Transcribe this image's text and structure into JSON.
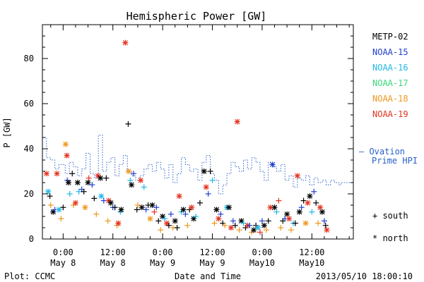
{
  "chart_data": {
    "type": "scatter",
    "title": "Hemispheric Power [GW]",
    "xlabel": "Date and Time",
    "ylabel": "P [GW]",
    "ylim": [
      0,
      95
    ],
    "xlim": [
      -5,
      70
    ],
    "x_unit": "hours since 2013-05-08 00:00 UT",
    "yticks": [
      0,
      20,
      40,
      60,
      80
    ],
    "xticks": [
      {
        "t": 0,
        "line1": "0:00",
        "line2": "May 8"
      },
      {
        "t": 12,
        "line1": "12:00",
        "line2": "May 8"
      },
      {
        "t": 24,
        "line1": "0:00",
        "line2": "May 9"
      },
      {
        "t": 36,
        "line1": "12:00",
        "line2": "May 9"
      },
      {
        "t": 48,
        "line1": "0:00",
        "line2": "May10"
      },
      {
        "t": 60,
        "line1": "12:00",
        "line2": "May10"
      }
    ],
    "footer_left": "Plot: CCMC",
    "footer_right": "2013/05/10 18:00:10",
    "legend": [
      {
        "name": "METP-02",
        "color": "#000000"
      },
      {
        "name": "NOAA-15",
        "color": "#1f3fcf"
      },
      {
        "name": "NOAA-16",
        "color": "#22b8e6"
      },
      {
        "name": "NOAA-17",
        "color": "#3ad87a"
      },
      {
        "name": "NOAA-18",
        "color": "#f0961e"
      },
      {
        "name": "NOAA-19",
        "color": "#e4321e"
      }
    ],
    "ovation_label": [
      "— Ovation",
      "Prime HPI"
    ],
    "ovation_color": "#2a5fc8",
    "marker_legend": [
      {
        "symbol": "+",
        "text": "south"
      },
      {
        "symbol": "*",
        "text": "north"
      }
    ],
    "ovation": [
      {
        "t": -5.0,
        "p": 45
      },
      {
        "t": -4.0,
        "p": 36
      },
      {
        "t": -3.0,
        "p": 35
      },
      {
        "t": -2.0,
        "p": 31
      },
      {
        "t": -1.0,
        "p": 33
      },
      {
        "t": 0.5,
        "p": 29
      },
      {
        "t": 1.5,
        "p": 34
      },
      {
        "t": 2.5,
        "p": 32
      },
      {
        "t": 3.5,
        "p": 28
      },
      {
        "t": 4.5,
        "p": 31
      },
      {
        "t": 5.5,
        "p": 38
      },
      {
        "t": 6.5,
        "p": 29
      },
      {
        "t": 7.5,
        "p": 27
      },
      {
        "t": 8.5,
        "p": 46
      },
      {
        "t": 9.5,
        "p": 30
      },
      {
        "t": 10.5,
        "p": 34
      },
      {
        "t": 11.5,
        "p": 36
      },
      {
        "t": 12.5,
        "p": 28
      },
      {
        "t": 13.5,
        "p": 33
      },
      {
        "t": 14.5,
        "p": 37
      },
      {
        "t": 15.5,
        "p": 30
      },
      {
        "t": 16.5,
        "p": 28
      },
      {
        "t": 17.5,
        "p": 26
      },
      {
        "t": 18.5,
        "p": 28
      },
      {
        "t": 19.5,
        "p": 31
      },
      {
        "t": 20.5,
        "p": 33
      },
      {
        "t": 21.5,
        "p": 30
      },
      {
        "t": 22.5,
        "p": 34
      },
      {
        "t": 23.5,
        "p": 31
      },
      {
        "t": 24.5,
        "p": 27
      },
      {
        "t": 25.5,
        "p": 33
      },
      {
        "t": 26.5,
        "p": 25
      },
      {
        "t": 27.5,
        "p": 29
      },
      {
        "t": 28.5,
        "p": 36
      },
      {
        "t": 29.5,
        "p": 33
      },
      {
        "t": 30.5,
        "p": 30
      },
      {
        "t": 31.5,
        "p": 31
      },
      {
        "t": 32.5,
        "p": 26
      },
      {
        "t": 33.5,
        "p": 34
      },
      {
        "t": 34.5,
        "p": 37
      },
      {
        "t": 35.5,
        "p": 29
      },
      {
        "t": 36.5,
        "p": 26
      },
      {
        "t": 37.5,
        "p": 20
      },
      {
        "t": 38.5,
        "p": 24
      },
      {
        "t": 39.5,
        "p": 29
      },
      {
        "t": 40.5,
        "p": 34
      },
      {
        "t": 41.5,
        "p": 32
      },
      {
        "t": 42.5,
        "p": 30
      },
      {
        "t": 43.5,
        "p": 35
      },
      {
        "t": 44.5,
        "p": 31
      },
      {
        "t": 45.5,
        "p": 36
      },
      {
        "t": 46.5,
        "p": 34
      },
      {
        "t": 47.5,
        "p": 30
      },
      {
        "t": 48.5,
        "p": 26
      },
      {
        "t": 49.5,
        "p": 34
      },
      {
        "t": 50.5,
        "p": 32
      },
      {
        "t": 51.5,
        "p": 30
      },
      {
        "t": 52.5,
        "p": 33
      },
      {
        "t": 53.5,
        "p": 26
      },
      {
        "t": 54.5,
        "p": 28
      },
      {
        "t": 55.5,
        "p": 23
      },
      {
        "t": 56.5,
        "p": 27
      },
      {
        "t": 57.5,
        "p": 26
      },
      {
        "t": 58.5,
        "p": 28
      },
      {
        "t": 59.5,
        "p": 24
      },
      {
        "t": 60.5,
        "p": 27
      },
      {
        "t": 61.5,
        "p": 25
      },
      {
        "t": 62.5,
        "p": 26
      },
      {
        "t": 63.5,
        "p": 24
      },
      {
        "t": 64.5,
        "p": 26
      },
      {
        "t": 65.5,
        "p": 25
      },
      {
        "t": 66.5,
        "p": 24
      },
      {
        "t": 67.0,
        "p": 25
      }
    ],
    "points": [
      {
        "sat": 5,
        "m": "n",
        "t": -4.0,
        "p": 29
      },
      {
        "sat": 2,
        "m": "n",
        "t": -3.6,
        "p": 21
      },
      {
        "sat": 0,
        "m": "s",
        "t": -3.2,
        "p": 19
      },
      {
        "sat": 4,
        "m": "s",
        "t": -3.0,
        "p": 15
      },
      {
        "sat": 0,
        "m": "n",
        "t": -2.4,
        "p": 12
      },
      {
        "sat": 1,
        "m": "s",
        "t": -2.0,
        "p": 13
      },
      {
        "sat": 5,
        "m": "n",
        "t": -1.5,
        "p": 29
      },
      {
        "sat": 2,
        "m": "n",
        "t": -1.0,
        "p": 13
      },
      {
        "sat": 4,
        "m": "s",
        "t": -0.5,
        "p": 9
      },
      {
        "sat": 0,
        "m": "s",
        "t": 0.0,
        "p": 14
      },
      {
        "sat": 4,
        "m": "n",
        "t": 0.6,
        "p": 42
      },
      {
        "sat": 5,
        "m": "n",
        "t": 0.9,
        "p": 37
      },
      {
        "sat": 1,
        "m": "s",
        "t": 1.0,
        "p": 26
      },
      {
        "sat": 0,
        "m": "n",
        "t": 1.3,
        "p": 25
      },
      {
        "sat": 2,
        "m": "s",
        "t": 1.6,
        "p": 20
      },
      {
        "sat": 0,
        "m": "s",
        "t": 2.2,
        "p": 29
      },
      {
        "sat": 4,
        "m": "s",
        "t": 2.5,
        "p": 15
      },
      {
        "sat": 5,
        "m": "n",
        "t": 3.0,
        "p": 16
      },
      {
        "sat": 0,
        "m": "n",
        "t": 3.5,
        "p": 25
      },
      {
        "sat": 2,
        "m": "s",
        "t": 3.8,
        "p": 21
      },
      {
        "sat": 1,
        "m": "s",
        "t": 4.5,
        "p": 22
      },
      {
        "sat": 0,
        "m": "s",
        "t": 5.0,
        "p": 21
      },
      {
        "sat": 4,
        "m": "n",
        "t": 5.3,
        "p": 14
      },
      {
        "sat": 0,
        "m": "n",
        "t": 6.0,
        "p": 25
      },
      {
        "sat": 5,
        "m": "s",
        "t": 6.2,
        "p": 27
      },
      {
        "sat": 1,
        "m": "s",
        "t": 7.0,
        "p": 24
      },
      {
        "sat": 0,
        "m": "s",
        "t": 7.5,
        "p": 18
      },
      {
        "sat": 4,
        "m": "s",
        "t": 8.0,
        "p": 11
      },
      {
        "sat": 5,
        "m": "n",
        "t": 8.4,
        "p": 28
      },
      {
        "sat": 0,
        "m": "n",
        "t": 9.0,
        "p": 27
      },
      {
        "sat": 2,
        "m": "n",
        "t": 9.2,
        "p": 19
      },
      {
        "sat": 1,
        "m": "s",
        "t": 9.8,
        "p": 17
      },
      {
        "sat": 0,
        "m": "s",
        "t": 10.4,
        "p": 27
      },
      {
        "sat": 4,
        "m": "s",
        "t": 10.8,
        "p": 8
      },
      {
        "sat": 5,
        "m": "n",
        "t": 11.0,
        "p": 17
      },
      {
        "sat": 0,
        "m": "n",
        "t": 11.5,
        "p": 16
      },
      {
        "sat": 1,
        "m": "s",
        "t": 12.0,
        "p": 14
      },
      {
        "sat": 0,
        "m": "s",
        "t": 12.5,
        "p": 14
      },
      {
        "sat": 4,
        "m": "s",
        "t": 13.0,
        "p": 6
      },
      {
        "sat": 5,
        "m": "n",
        "t": 13.3,
        "p": 7
      },
      {
        "sat": 2,
        "m": "s",
        "t": 13.8,
        "p": 12
      },
      {
        "sat": 0,
        "m": "n",
        "t": 14.0,
        "p": 13
      },
      {
        "sat": 5,
        "m": "n",
        "t": 15.0,
        "p": 87
      },
      {
        "sat": 0,
        "m": "s",
        "t": 15.7,
        "p": 51
      },
      {
        "sat": 4,
        "m": "n",
        "t": 15.8,
        "p": 30
      },
      {
        "sat": 2,
        "m": "s",
        "t": 16.2,
        "p": 26
      },
      {
        "sat": 0,
        "m": "n",
        "t": 16.5,
        "p": 24
      },
      {
        "sat": 1,
        "m": "s",
        "t": 17.0,
        "p": 29
      },
      {
        "sat": 0,
        "m": "s",
        "t": 17.8,
        "p": 13
      },
      {
        "sat": 4,
        "m": "s",
        "t": 18.0,
        "p": 15
      },
      {
        "sat": 5,
        "m": "n",
        "t": 18.7,
        "p": 26
      },
      {
        "sat": 0,
        "m": "n",
        "t": 19.0,
        "p": 14
      },
      {
        "sat": 2,
        "m": "s",
        "t": 19.5,
        "p": 23
      },
      {
        "sat": 1,
        "m": "s",
        "t": 20.0,
        "p": 13
      },
      {
        "sat": 0,
        "m": "s",
        "t": 20.5,
        "p": 15
      },
      {
        "sat": 4,
        "m": "n",
        "t": 21.0,
        "p": 9
      },
      {
        "sat": 0,
        "m": "n",
        "t": 21.5,
        "p": 15
      },
      {
        "sat": 5,
        "m": "s",
        "t": 22.0,
        "p": 12
      },
      {
        "sat": 1,
        "m": "s",
        "t": 22.5,
        "p": 14
      },
      {
        "sat": 0,
        "m": "s",
        "t": 23.0,
        "p": 8
      },
      {
        "sat": 4,
        "m": "s",
        "t": 23.5,
        "p": 4
      },
      {
        "sat": 0,
        "m": "n",
        "t": 24.0,
        "p": 10
      },
      {
        "sat": 2,
        "m": "s",
        "t": 24.5,
        "p": 9
      },
      {
        "sat": 5,
        "m": "n",
        "t": 25.0,
        "p": 7
      },
      {
        "sat": 0,
        "m": "s",
        "t": 25.5,
        "p": 6
      },
      {
        "sat": 1,
        "m": "s",
        "t": 26.0,
        "p": 11
      },
      {
        "sat": 4,
        "m": "s",
        "t": 26.5,
        "p": 5
      },
      {
        "sat": 0,
        "m": "n",
        "t": 27.0,
        "p": 8
      },
      {
        "sat": 0,
        "m": "s",
        "t": 27.5,
        "p": 5
      },
      {
        "sat": 5,
        "m": "n",
        "t": 28.0,
        "p": 19
      },
      {
        "sat": 2,
        "m": "s",
        "t": 28.5,
        "p": 12
      },
      {
        "sat": 0,
        "m": "n",
        "t": 29.0,
        "p": 13
      },
      {
        "sat": 1,
        "m": "s",
        "t": 29.5,
        "p": 11
      },
      {
        "sat": 4,
        "m": "s",
        "t": 30.0,
        "p": 6
      },
      {
        "sat": 0,
        "m": "s",
        "t": 30.5,
        "p": 13
      },
      {
        "sat": 5,
        "m": "n",
        "t": 31.0,
        "p": 14
      },
      {
        "sat": 0,
        "m": "n",
        "t": 31.5,
        "p": 9
      },
      {
        "sat": 2,
        "m": "s",
        "t": 32.0,
        "p": 10
      },
      {
        "sat": 0,
        "m": "s",
        "t": 33.0,
        "p": 16
      },
      {
        "sat": 0,
        "m": "n",
        "t": 34.0,
        "p": 30
      },
      {
        "sat": 5,
        "m": "n",
        "t": 34.5,
        "p": 23
      },
      {
        "sat": 1,
        "m": "s",
        "t": 35.0,
        "p": 20
      },
      {
        "sat": 0,
        "m": "s",
        "t": 35.5,
        "p": 30
      },
      {
        "sat": 2,
        "m": "s",
        "t": 36.0,
        "p": 26
      },
      {
        "sat": 4,
        "m": "s",
        "t": 36.5,
        "p": 7
      },
      {
        "sat": 0,
        "m": "n",
        "t": 37.0,
        "p": 13
      },
      {
        "sat": 5,
        "m": "n",
        "t": 37.5,
        "p": 9
      },
      {
        "sat": 1,
        "m": "s",
        "t": 38.0,
        "p": 11
      },
      {
        "sat": 0,
        "m": "s",
        "t": 38.5,
        "p": 7
      },
      {
        "sat": 4,
        "m": "s",
        "t": 39.0,
        "p": 6
      },
      {
        "sat": 2,
        "m": "n",
        "t": 39.5,
        "p": 14
      },
      {
        "sat": 0,
        "m": "n",
        "t": 40.0,
        "p": 14
      },
      {
        "sat": 5,
        "m": "n",
        "t": 40.5,
        "p": 5
      },
      {
        "sat": 1,
        "m": "s",
        "t": 41.0,
        "p": 8
      },
      {
        "sat": 0,
        "m": "s",
        "t": 41.5,
        "p": 6
      },
      {
        "sat": 5,
        "m": "n",
        "t": 42.0,
        "p": 52
      },
      {
        "sat": 4,
        "m": "s",
        "t": 42.5,
        "p": 4
      },
      {
        "sat": 0,
        "m": "n",
        "t": 43.0,
        "p": 8
      },
      {
        "sat": 2,
        "m": "s",
        "t": 43.5,
        "p": 7
      },
      {
        "sat": 0,
        "m": "s",
        "t": 44.0,
        "p": 5
      },
      {
        "sat": 5,
        "m": "n",
        "t": 44.5,
        "p": 6
      },
      {
        "sat": 1,
        "m": "s",
        "t": 45.0,
        "p": 6
      },
      {
        "sat": 4,
        "m": "s",
        "t": 45.5,
        "p": 3
      },
      {
        "sat": 0,
        "m": "n",
        "t": 46.0,
        "p": 4
      },
      {
        "sat": 0,
        "m": "s",
        "t": 46.5,
        "p": 6
      },
      {
        "sat": 2,
        "m": "n",
        "t": 47.0,
        "p": 5
      },
      {
        "sat": 5,
        "m": "s",
        "t": 47.5,
        "p": 3
      },
      {
        "sat": 1,
        "m": "s",
        "t": 48.0,
        "p": 8
      },
      {
        "sat": 0,
        "m": "n",
        "t": 48.5,
        "p": 6
      },
      {
        "sat": 4,
        "m": "s",
        "t": 49.0,
        "p": 4
      },
      {
        "sat": 0,
        "m": "s",
        "t": 49.5,
        "p": 8
      },
      {
        "sat": 5,
        "m": "n",
        "t": 50.0,
        "p": 14
      },
      {
        "sat": 1,
        "m": "n",
        "t": 50.5,
        "p": 33
      },
      {
        "sat": 0,
        "m": "n",
        "t": 51.0,
        "p": 14
      },
      {
        "sat": 2,
        "m": "s",
        "t": 51.5,
        "p": 12
      },
      {
        "sat": 5,
        "m": "s",
        "t": 52.0,
        "p": 17
      },
      {
        "sat": 4,
        "m": "s",
        "t": 52.5,
        "p": 5
      },
      {
        "sat": 0,
        "m": "s",
        "t": 53.0,
        "p": 8
      },
      {
        "sat": 1,
        "m": "s",
        "t": 53.5,
        "p": 9
      },
      {
        "sat": 0,
        "m": "n",
        "t": 54.0,
        "p": 11
      },
      {
        "sat": 5,
        "m": "n",
        "t": 54.5,
        "p": 9
      },
      {
        "sat": 4,
        "m": "s",
        "t": 55.0,
        "p": 4
      },
      {
        "sat": 2,
        "m": "s",
        "t": 55.5,
        "p": 7
      },
      {
        "sat": 0,
        "m": "s",
        "t": 56.0,
        "p": 7
      },
      {
        "sat": 5,
        "m": "n",
        "t": 56.5,
        "p": 28
      },
      {
        "sat": 0,
        "m": "n",
        "t": 57.0,
        "p": 12
      },
      {
        "sat": 1,
        "m": "s",
        "t": 57.5,
        "p": 14
      },
      {
        "sat": 0,
        "m": "s",
        "t": 58.0,
        "p": 17
      },
      {
        "sat": 4,
        "m": "n",
        "t": 58.5,
        "p": 7
      },
      {
        "sat": 5,
        "m": "n",
        "t": 59.0,
        "p": 16
      },
      {
        "sat": 0,
        "m": "n",
        "t": 59.5,
        "p": 19
      },
      {
        "sat": 2,
        "m": "s",
        "t": 60.0,
        "p": 12
      },
      {
        "sat": 1,
        "m": "s",
        "t": 60.5,
        "p": 21
      },
      {
        "sat": 0,
        "m": "s",
        "t": 61.0,
        "p": 16
      },
      {
        "sat": 4,
        "m": "s",
        "t": 61.5,
        "p": 7
      },
      {
        "sat": 5,
        "m": "n",
        "t": 62.0,
        "p": 14
      },
      {
        "sat": 0,
        "m": "n",
        "t": 62.5,
        "p": 12
      },
      {
        "sat": 1,
        "m": "s",
        "t": 63.0,
        "p": 8
      },
      {
        "sat": 0,
        "m": "s",
        "t": 63.3,
        "p": 6
      },
      {
        "sat": 5,
        "m": "n",
        "t": 63.6,
        "p": 4
      }
    ]
  }
}
